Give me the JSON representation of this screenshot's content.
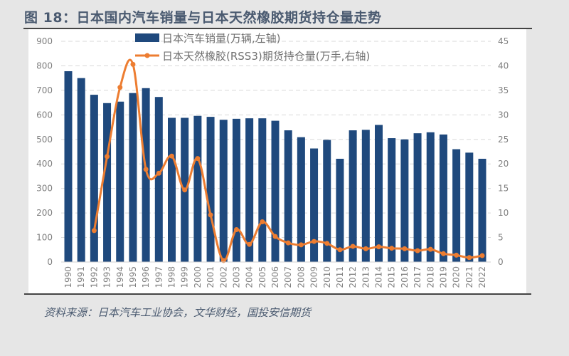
{
  "title": "图 18：日本国内汽车销量与日本天然橡胶期货持仓量走势",
  "source": "资料来源：日本汽车工业协会，文华财经，国投安信期货",
  "chart_data": {
    "type": "bar+line",
    "categories": [
      "1990",
      "1991",
      "1992",
      "1993",
      "1994",
      "1995",
      "1996",
      "1997",
      "1998",
      "1999",
      "2000",
      "2001",
      "2002",
      "2003",
      "2004",
      "2005",
      "2006",
      "2007",
      "2008",
      "2009",
      "2010",
      "2011",
      "2012",
      "2013",
      "2014",
      "2015",
      "2016",
      "2017",
      "2018",
      "2019",
      "2020",
      "2021",
      "2022"
    ],
    "series": [
      {
        "name": "日本汽车销量(万辆,左轴)",
        "type": "bar",
        "axis": "left",
        "color": "#1f497d",
        "values": [
          778,
          750,
          682,
          648,
          654,
          689,
          709,
          673,
          588,
          588,
          596,
          592,
          580,
          584,
          586,
          586,
          576,
          537,
          509,
          463,
          498,
          421,
          537,
          539,
          559,
          505,
          500,
          525,
          529,
          520,
          460,
          446,
          421
        ]
      },
      {
        "name": "日本天然橡胶(RSS3)期货持仓量(万手,右轴)",
        "type": "line",
        "axis": "right",
        "color": "#ed7d31",
        "values": [
          null,
          null,
          6.4,
          21.5,
          35.6,
          40.3,
          18.9,
          18.1,
          21.6,
          14.7,
          21.1,
          9.6,
          0.3,
          6.6,
          3.6,
          8.2,
          5.2,
          3.9,
          3.5,
          4.2,
          3.8,
          2.5,
          3.2,
          2.7,
          3.1,
          2.8,
          2.7,
          2.3,
          2.6,
          1.7,
          1.4,
          0.9,
          1.3
        ]
      }
    ],
    "left_axis": {
      "range": [
        0,
        900
      ],
      "ticks": [
        "0",
        "100",
        "200",
        "300",
        "400",
        "500",
        "600",
        "700",
        "800",
        "900"
      ]
    },
    "right_axis": {
      "range": [
        0,
        45
      ],
      "ticks": [
        "0",
        "5",
        "10",
        "15",
        "20",
        "25",
        "30",
        "35",
        "40",
        "45"
      ]
    },
    "grid": "horizontal dashed",
    "legend": "top"
  }
}
